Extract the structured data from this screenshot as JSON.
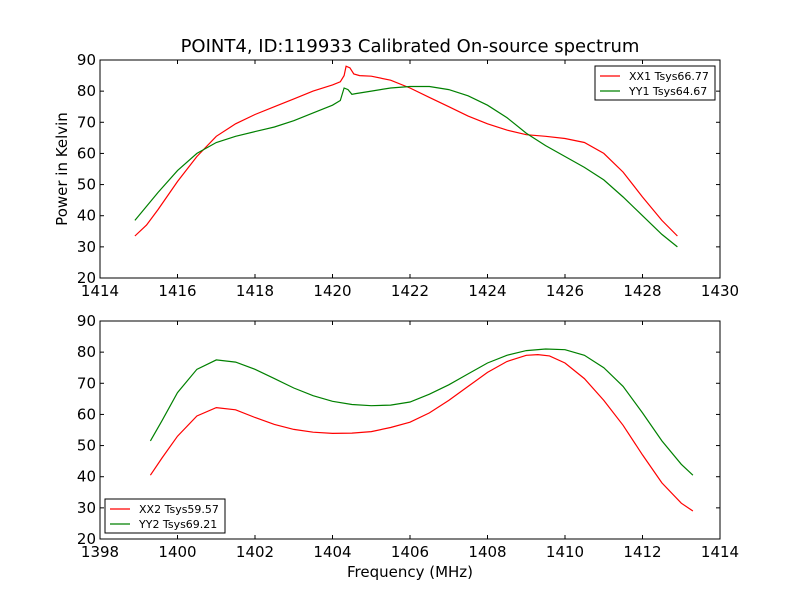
{
  "colors": {
    "red": "#ff0000",
    "green": "#008000"
  },
  "chart_data": [
    {
      "type": "line",
      "title": "POINT4, ID:119933 Calibrated On-source spectrum",
      "ylabel": "Power in Kelvin",
      "xlabel": "",
      "xlim": [
        1414,
        1430
      ],
      "ylim": [
        20,
        90
      ],
      "xticks": [
        1414,
        1416,
        1418,
        1420,
        1422,
        1424,
        1426,
        1428,
        1430
      ],
      "yticks": [
        20,
        30,
        40,
        50,
        60,
        70,
        80,
        90
      ],
      "legend": "top-right",
      "series": [
        {
          "name": "XX1 Tsys66.77",
          "color": "red",
          "x": [
            1414.9,
            1415.2,
            1415.5,
            1416.0,
            1416.5,
            1417.0,
            1417.5,
            1418.0,
            1418.5,
            1419.0,
            1419.5,
            1420.0,
            1420.2,
            1420.3,
            1420.35,
            1420.45,
            1420.55,
            1420.7,
            1421.0,
            1421.5,
            1422.0,
            1422.5,
            1423.0,
            1423.5,
            1424.0,
            1424.5,
            1425.0,
            1425.5,
            1426.0,
            1426.5,
            1427.0,
            1427.5,
            1428.0,
            1428.5,
            1428.9
          ],
          "y": [
            33.5,
            37,
            42,
            51,
            59,
            65.5,
            69.5,
            72.5,
            75,
            77.5,
            80,
            82,
            83,
            85,
            88,
            87.5,
            85.5,
            85,
            84.8,
            83.5,
            81,
            78,
            75,
            72,
            69.5,
            67.5,
            66,
            65.5,
            64.8,
            63.5,
            60,
            54,
            46,
            38.5,
            33.5
          ]
        },
        {
          "name": "YY1 Tsys64.67",
          "color": "green",
          "x": [
            1414.9,
            1415.2,
            1415.5,
            1416.0,
            1416.5,
            1417.0,
            1417.5,
            1418.0,
            1418.5,
            1419.0,
            1419.5,
            1420.0,
            1420.2,
            1420.3,
            1420.4,
            1420.5,
            1420.6,
            1421.0,
            1421.5,
            1422.0,
            1422.5,
            1423.0,
            1423.5,
            1424.0,
            1424.5,
            1425.0,
            1425.5,
            1426.0,
            1426.5,
            1427.0,
            1427.5,
            1428.0,
            1428.5,
            1428.9
          ],
          "y": [
            38.5,
            43,
            47.5,
            54.5,
            60,
            63.5,
            65.5,
            67,
            68.5,
            70.5,
            73,
            75.5,
            77,
            81,
            80.5,
            79,
            79.2,
            80,
            81,
            81.5,
            81.5,
            80.5,
            78.5,
            75.5,
            71.5,
            66.5,
            62.5,
            59,
            55.5,
            51.5,
            46,
            40,
            34,
            30
          ]
        }
      ]
    },
    {
      "type": "line",
      "title": "",
      "ylabel": "",
      "xlabel": "Frequency (MHz)",
      "xlim": [
        1398,
        1414
      ],
      "ylim": [
        20,
        90
      ],
      "xticks": [
        1398,
        1400,
        1402,
        1404,
        1406,
        1408,
        1410,
        1412,
        1414
      ],
      "yticks": [
        20,
        30,
        40,
        50,
        60,
        70,
        80,
        90
      ],
      "legend": "bottom-left",
      "series": [
        {
          "name": "XX2 Tsys59.57",
          "color": "red",
          "x": [
            1399.3,
            1399.6,
            1400.0,
            1400.5,
            1401.0,
            1401.5,
            1402.0,
            1402.5,
            1403.0,
            1403.5,
            1404.0,
            1404.5,
            1405.0,
            1405.5,
            1406.0,
            1406.5,
            1407.0,
            1407.5,
            1408.0,
            1408.5,
            1409.0,
            1409.3,
            1409.6,
            1410.0,
            1410.5,
            1411.0,
            1411.5,
            1412.0,
            1412.5,
            1413.0,
            1413.3
          ],
          "y": [
            40.5,
            46,
            53,
            59.5,
            62.2,
            61.5,
            59,
            56.8,
            55.2,
            54.3,
            53.9,
            54,
            54.5,
            55.8,
            57.5,
            60.5,
            64.5,
            69,
            73.5,
            77,
            79,
            79.2,
            78.8,
            76.5,
            71.5,
            64.5,
            56.5,
            47,
            38,
            31.5,
            29
          ]
        },
        {
          "name": "YY2 Tsys69.21",
          "color": "green",
          "x": [
            1399.3,
            1399.6,
            1400.0,
            1400.5,
            1401.0,
            1401.5,
            1402.0,
            1402.5,
            1403.0,
            1403.5,
            1404.0,
            1404.5,
            1405.0,
            1405.5,
            1406.0,
            1406.5,
            1407.0,
            1407.5,
            1408.0,
            1408.5,
            1409.0,
            1409.5,
            1410.0,
            1410.5,
            1411.0,
            1411.5,
            1412.0,
            1412.5,
            1413.0,
            1413.3
          ],
          "y": [
            51.5,
            58,
            67,
            74.5,
            77.5,
            76.8,
            74.5,
            71.5,
            68.5,
            66,
            64.2,
            63.2,
            62.8,
            63,
            64,
            66.5,
            69.5,
            73,
            76.5,
            79,
            80.5,
            81,
            80.8,
            79,
            75,
            69,
            60.5,
            51.5,
            44,
            40.5
          ]
        }
      ]
    }
  ]
}
